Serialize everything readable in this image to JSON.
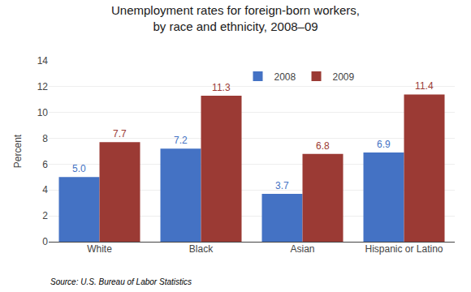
{
  "chart_data": {
    "type": "bar",
    "title": "Unemployment rates for foreign-born workers,\nby race and ethnicity, 2008–09",
    "categories": [
      "White",
      "Black",
      "Asian",
      "Hispanic or Latino"
    ],
    "series": [
      {
        "name": "2008",
        "color": "#4472C4",
        "values": [
          5.0,
          7.2,
          3.7,
          6.9
        ],
        "value_labels": [
          "5.0",
          "7.2",
          "3.7",
          "6.9"
        ]
      },
      {
        "name": "2009",
        "color": "#9B3A34",
        "values": [
          7.7,
          11.3,
          6.8,
          11.4
        ],
        "value_labels": [
          "7.7",
          "11.3",
          "6.8",
          "11.4"
        ]
      }
    ],
    "ylabel": "Percent",
    "ylim": [
      0,
      14
    ],
    "yticks": [
      0,
      2,
      4,
      6,
      8,
      10,
      12,
      14
    ],
    "grid": true,
    "legend": "upper center",
    "data_labels": true,
    "annotations": [
      "Source: U.S. Bureau of Labor Statistics"
    ]
  }
}
